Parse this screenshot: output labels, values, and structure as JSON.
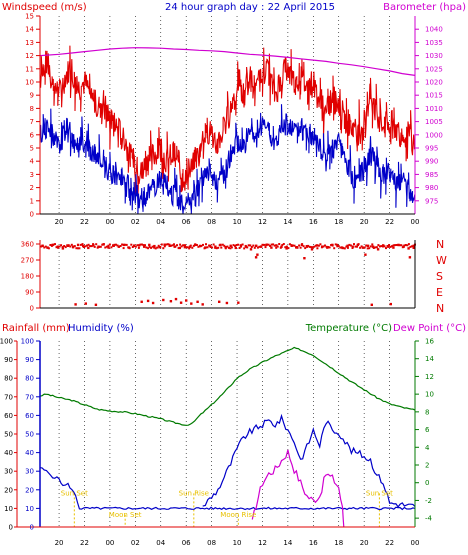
{
  "panels": {
    "wind": {
      "left_label": "Windspeed (m/s)",
      "title": "24 hour graph day : 22 April 2015",
      "right_label": "Barometer (hpa)"
    },
    "dir": {
      "compass": [
        "N",
        "W",
        "S",
        "E",
        "N"
      ]
    },
    "lower": {
      "rain_label": "Rainfall (mm)",
      "hum_label": "Humidity (%)",
      "temp_label": "Temperature (°C)",
      "dew_label": "Dew Point (°C)"
    }
  },
  "colors": {
    "wind_gust": "#e00000",
    "wind_avg": "#0000c8",
    "barometer": "#d000d0",
    "direction": "#e00000",
    "temperature": "#007a00",
    "humidity": "#0000c8",
    "dewpoint": "#d000d0",
    "rain": "#e00000",
    "events": "#e8c000",
    "grid": "#000000"
  },
  "chart_data": [
    {
      "type": "line",
      "name": "wind-barometer",
      "x_ticks": [
        "20",
        "22",
        "00",
        "02",
        "04",
        "06",
        "08",
        "10",
        "12",
        "14",
        "16",
        "18",
        "20",
        "22",
        "00"
      ],
      "x_hours": [
        20,
        22,
        24,
        26,
        28,
        30,
        32,
        34,
        36,
        38,
        40,
        42,
        44,
        46,
        48
      ],
      "xlim": [
        18.5,
        48
      ],
      "left_axis": {
        "label": "Windspeed (m/s)",
        "ylim": [
          0,
          15
        ],
        "ticks": [
          0,
          1,
          2,
          3,
          4,
          5,
          6,
          7,
          8,
          9,
          10,
          11,
          12,
          13,
          14,
          15
        ]
      },
      "right_axis": {
        "label": "Barometer (hpa)",
        "ylim": [
          970,
          1045
        ],
        "ticks": [
          975,
          980,
          985,
          990,
          995,
          1000,
          1005,
          1010,
          1015,
          1020,
          1025,
          1030,
          1035,
          1040
        ]
      },
      "series": [
        {
          "axis": "left",
          "hours": [
            18.5,
            19,
            19.5,
            20,
            20.5,
            21,
            21.5,
            22,
            22.5,
            23,
            23.5,
            24,
            24.5,
            25,
            25.5,
            26,
            26.5,
            27,
            27.5,
            28,
            28.5,
            29,
            29.5,
            30,
            30.5,
            31,
            31.5,
            32,
            32.5,
            33,
            33.5,
            34,
            34.5,
            35,
            35.5,
            36,
            36.5,
            37,
            37.5,
            38,
            38.5,
            39,
            39.5,
            40,
            40.5,
            41,
            41.5,
            42,
            42.5,
            43,
            43.5,
            44,
            44.5,
            45,
            45.5,
            46,
            46.5,
            47,
            47.5,
            48
          ],
          "values": [
            10.5,
            11.5,
            10,
            9,
            10.5,
            11,
            9.5,
            10,
            9,
            8,
            8.5,
            7,
            6.5,
            6,
            4.5,
            3.5,
            3,
            4,
            4.5,
            5,
            4,
            4.5,
            3.5,
            2.5,
            3.5,
            4.5,
            6.5,
            6,
            5.5,
            6.5,
            8,
            9.5,
            9,
            10.5,
            9,
            11,
            10.5,
            9,
            10.5,
            11,
            10,
            10.5,
            9.5,
            10,
            8.5,
            7.5,
            9,
            8.5,
            7,
            6.5,
            6,
            7,
            9,
            7.5,
            6.5,
            7,
            6.5,
            6,
            6,
            5
          ]
        },
        {
          "axis": "left",
          "hours": [
            18.5,
            19,
            19.5,
            20,
            20.5,
            21,
            21.5,
            22,
            22.5,
            23,
            23.5,
            24,
            24.5,
            25,
            25.5,
            26,
            26.5,
            27,
            27.5,
            28,
            28.5,
            29,
            29.5,
            30,
            30.5,
            31,
            31.5,
            32,
            32.5,
            33,
            33.5,
            34,
            34.5,
            35,
            35.5,
            36,
            36.5,
            37,
            37.5,
            38,
            38.5,
            39,
            39.5,
            40,
            40.5,
            41,
            41.5,
            42,
            42.5,
            43,
            43.5,
            44,
            44.5,
            45,
            45.5,
            46,
            46.5,
            47,
            47.5,
            48
          ],
          "values": [
            6,
            6.5,
            6,
            5,
            6.5,
            6,
            5.5,
            5.5,
            5,
            4,
            4,
            3,
            3,
            2.5,
            2,
            1.5,
            1,
            1.5,
            2,
            2.5,
            2,
            1.5,
            1,
            0.5,
            1,
            2,
            3,
            3,
            2.5,
            3,
            4.5,
            5.5,
            5,
            6.5,
            5.5,
            7,
            6.5,
            5,
            6.5,
            7,
            6,
            6.5,
            6,
            6,
            5,
            4,
            5,
            5.5,
            4,
            3,
            2.5,
            3.5,
            5,
            3.5,
            3,
            3,
            2.5,
            2.5,
            2,
            1.5
          ]
        },
        {
          "axis": "right",
          "hours": [
            18.5,
            20,
            21,
            22,
            23,
            24,
            25,
            26,
            27,
            28,
            29,
            30,
            31,
            32,
            33,
            34,
            35,
            36,
            37,
            38,
            39,
            40,
            41,
            42,
            43,
            44,
            45,
            46,
            47,
            48
          ],
          "values": [
            1030,
            1030.5,
            1031,
            1031.5,
            1032,
            1032.5,
            1032.8,
            1033,
            1032.9,
            1032.8,
            1032.5,
            1032.3,
            1032,
            1031.8,
            1031.5,
            1031,
            1030.5,
            1030.2,
            1029.8,
            1029.3,
            1028.8,
            1028.3,
            1027.8,
            1027.1,
            1026.5,
            1025.8,
            1025,
            1024.2,
            1023.2,
            1022.5
          ]
        }
      ]
    },
    {
      "type": "scatter",
      "name": "wind-direction",
      "ylim": [
        0,
        360
      ],
      "ticks": [
        0,
        90,
        180,
        270,
        360
      ],
      "points": [
        [
          18.7,
          350
        ],
        [
          19.1,
          340
        ],
        [
          19.5,
          355
        ],
        [
          19.9,
          345
        ],
        [
          20.3,
          335
        ],
        [
          20.7,
          350
        ],
        [
          21.1,
          342
        ],
        [
          21.5,
          355
        ],
        [
          21.9,
          348
        ],
        [
          22.3,
          338
        ],
        [
          22.7,
          352
        ],
        [
          23.1,
          345
        ],
        [
          23.5,
          358
        ],
        [
          23.9,
          340
        ],
        [
          24.3,
          350
        ],
        [
          24.7,
          345
        ],
        [
          25.1,
          355
        ],
        [
          25.5,
          340
        ],
        [
          25.9,
          350
        ],
        [
          26.3,
          352
        ],
        [
          26.7,
          345
        ],
        [
          27.1,
          355
        ],
        [
          27.5,
          348
        ],
        [
          27.9,
          342
        ],
        [
          28.3,
          356
        ],
        [
          28.7,
          350
        ],
        [
          29.1,
          345
        ],
        [
          29.5,
          338
        ],
        [
          29.9,
          352
        ],
        [
          30.3,
          345
        ],
        [
          30.7,
          355
        ],
        [
          31.1,
          348
        ],
        [
          31.5,
          340
        ],
        [
          31.9,
          350
        ],
        [
          32.3,
          345
        ],
        [
          32.7,
          355
        ],
        [
          33.1,
          342
        ],
        [
          33.5,
          350
        ],
        [
          33.9,
          338
        ],
        [
          34.3,
          352
        ],
        [
          34.7,
          345
        ],
        [
          35.1,
          330
        ],
        [
          35.5,
          350
        ],
        [
          35.9,
          345
        ],
        [
          36.3,
          355
        ],
        [
          36.7,
          340
        ],
        [
          37.1,
          352
        ],
        [
          37.5,
          345
        ],
        [
          37.9,
          335
        ],
        [
          38.3,
          350
        ],
        [
          38.7,
          342
        ],
        [
          39.1,
          355
        ],
        [
          39.5,
          345
        ],
        [
          39.9,
          330
        ],
        [
          40.3,
          352
        ],
        [
          40.7,
          345
        ],
        [
          41.1,
          340
        ],
        [
          41.5,
          355
        ],
        [
          41.9,
          348
        ],
        [
          42.3,
          338
        ],
        [
          42.7,
          350
        ],
        [
          43.1,
          345
        ],
        [
          43.5,
          355
        ],
        [
          43.9,
          340
        ],
        [
          44.3,
          350
        ],
        [
          44.7,
          345
        ],
        [
          45.1,
          330
        ],
        [
          45.5,
          352
        ],
        [
          45.9,
          345
        ],
        [
          46.3,
          340
        ],
        [
          46.7,
          355
        ],
        [
          47.1,
          345
        ],
        [
          47.5,
          335
        ],
        [
          47.9,
          350
        ],
        [
          35.5,
          285
        ],
        [
          35.6,
          300
        ],
        [
          39.3,
          280
        ],
        [
          44.1,
          300
        ],
        [
          47.6,
          285
        ],
        [
          21.3,
          20
        ],
        [
          22.1,
          25
        ],
        [
          22.9,
          18
        ],
        [
          26.5,
          35
        ],
        [
          27.0,
          40
        ],
        [
          27.4,
          28
        ],
        [
          28.2,
          45
        ],
        [
          28.8,
          38
        ],
        [
          29.2,
          50
        ],
        [
          29.6,
          30
        ],
        [
          30.0,
          42
        ],
        [
          30.4,
          25
        ],
        [
          30.9,
          35
        ],
        [
          31.3,
          20
        ],
        [
          32.6,
          35
        ],
        [
          33.2,
          28
        ],
        [
          34.1,
          30
        ],
        [
          44.6,
          18
        ],
        [
          46.1,
          22
        ]
      ]
    },
    {
      "type": "line",
      "name": "rain-humidity-temperature",
      "x_ticks": [
        "20",
        "22",
        "00",
        "02",
        "04",
        "06",
        "08",
        "10",
        "12",
        "14",
        "16",
        "18",
        "20",
        "22",
        "00"
      ],
      "x_hours": [
        20,
        22,
        24,
        26,
        28,
        30,
        32,
        34,
        36,
        38,
        40,
        42,
        44,
        46,
        48
      ],
      "xlim": [
        18.5,
        48
      ],
      "left_axis_rain": {
        "label": "Rainfall (mm)",
        "ylim": [
          0,
          100
        ],
        "ticks": [
          0,
          10,
          20,
          30,
          40,
          50,
          60,
          70,
          80,
          90,
          100
        ]
      },
      "left_axis_humidity": {
        "label": "Humidity (%)",
        "ylim": [
          0,
          100
        ],
        "ticks": [
          0,
          10,
          20,
          30,
          40,
          50,
          60,
          70,
          80,
          90,
          100
        ]
      },
      "right_axis": {
        "label": "Temperature (°C)",
        "ylim": [
          -5,
          16
        ],
        "ticks": [
          -4,
          -2,
          0,
          2,
          4,
          6,
          8,
          10,
          12,
          14,
          16
        ]
      },
      "series": [
        {
          "axis": "right",
          "hours": [
            18.5,
            19,
            20,
            21,
            22,
            23,
            24,
            25,
            26,
            27,
            28,
            29,
            30,
            30.5,
            31,
            32,
            33,
            34,
            35,
            36,
            37,
            38,
            38.5,
            39,
            40,
            41,
            42,
            43,
            44,
            45,
            46,
            47,
            48
          ],
          "values": [
            9.8,
            10,
            9.6,
            9.3,
            8.8,
            8.3,
            8.1,
            8.0,
            7.8,
            7.5,
            7.2,
            6.8,
            6.5,
            6.7,
            7.5,
            8.8,
            10.2,
            11.8,
            12.8,
            13.6,
            14.3,
            14.9,
            15.2,
            15.0,
            14.4,
            13.4,
            12.4,
            11.4,
            10.5,
            9.6,
            8.9,
            8.5,
            8.2
          ]
        },
        {
          "axis": "hum",
          "hours": [
            18.5,
            19,
            19.5,
            20,
            20.3,
            20.7,
            21,
            21.3,
            21.6,
            48
          ],
          "values": [
            32,
            30,
            27,
            26,
            22,
            23,
            20,
            17,
            10,
            10
          ]
        },
        {
          "axis": "hum",
          "hours": [
            31.3,
            31.7,
            32,
            32.5,
            33,
            33.5,
            34,
            34.5,
            35,
            35.5,
            36,
            36.5,
            37,
            37.5,
            38,
            38.5,
            39,
            39.5,
            40,
            40.5,
            41,
            41.5,
            42,
            42.5,
            43,
            43.5,
            44,
            44.5,
            45,
            45.5,
            46,
            48
          ],
          "values": [
            11,
            14,
            16,
            20,
            27,
            34,
            42,
            48,
            51,
            53,
            55,
            57,
            55,
            58,
            52,
            46,
            36,
            43,
            52,
            44,
            57,
            52,
            51,
            46,
            41,
            40,
            38,
            36,
            28,
            24,
            13,
            11
          ]
        },
        {
          "axis": "right",
          "hours": [
            35.2,
            35.5,
            36,
            36.5,
            37,
            37.5,
            38,
            38.5,
            39,
            39.5,
            40,
            40.5,
            41,
            41.5,
            42,
            42.3,
            42.4
          ],
          "values": [
            -4.5,
            -2.5,
            0,
            1.0,
            1.5,
            2.5,
            3.5,
            1.5,
            0,
            -1.5,
            -2.0,
            -1.5,
            1.0,
            0.5,
            -0.5,
            -3,
            -5
          ]
        }
      ],
      "events": [
        {
          "label": "Sun Set",
          "hour": 21.2,
          "row": "upper"
        },
        {
          "label": "Sun Rise",
          "hour": 30.6,
          "row": "upper"
        },
        {
          "label": "Sun Set",
          "hour": 45.2,
          "row": "upper"
        },
        {
          "label": "Moon Set",
          "hour": 25.2,
          "row": "lower"
        },
        {
          "label": "Moon Rise",
          "hour": 34.1,
          "row": "lower"
        }
      ]
    }
  ]
}
